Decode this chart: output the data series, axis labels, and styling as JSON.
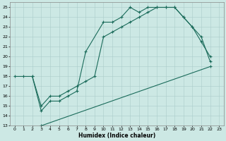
{
  "xlabel": "Humidex (Indice chaleur)",
  "background_color": "#cce8e4",
  "grid_color": "#aaccca",
  "line_color": "#1a6b5a",
  "xlim": [
    -0.5,
    23.5
  ],
  "ylim": [
    13,
    25.5
  ],
  "yticks": [
    13,
    14,
    15,
    16,
    17,
    18,
    19,
    20,
    21,
    22,
    23,
    24,
    25
  ],
  "xticks": [
    0,
    1,
    2,
    3,
    4,
    5,
    6,
    7,
    8,
    9,
    10,
    11,
    12,
    13,
    14,
    15,
    16,
    17,
    18,
    19,
    20,
    21,
    22,
    23
  ],
  "line1_x": [
    0,
    1,
    2,
    3,
    4,
    5,
    6,
    7,
    8,
    10,
    11,
    12,
    13,
    14,
    15,
    16,
    17,
    18,
    19,
    20,
    21,
    22
  ],
  "line1_y": [
    18,
    18,
    18,
    14.5,
    15.5,
    15.5,
    16.0,
    16.5,
    20.5,
    23.5,
    23.5,
    24.0,
    25.0,
    24.5,
    25.0,
    25.0,
    25.0,
    25.0,
    24.0,
    23.0,
    21.5,
    20.0
  ],
  "line2_x": [
    2,
    3,
    4,
    5,
    6,
    7,
    8,
    9,
    10,
    11,
    12,
    13,
    14,
    15,
    16,
    17,
    18,
    19,
    20,
    21,
    22
  ],
  "line2_y": [
    18,
    15.0,
    16.0,
    16.0,
    16.5,
    17.0,
    17.5,
    18.0,
    22.0,
    22.5,
    23.0,
    23.5,
    24.0,
    24.5,
    25.0,
    25.0,
    25.0,
    24.0,
    23.0,
    22.0,
    19.5
  ],
  "line3_x": [
    3,
    22
  ],
  "line3_y": [
    13.0,
    19.0
  ]
}
